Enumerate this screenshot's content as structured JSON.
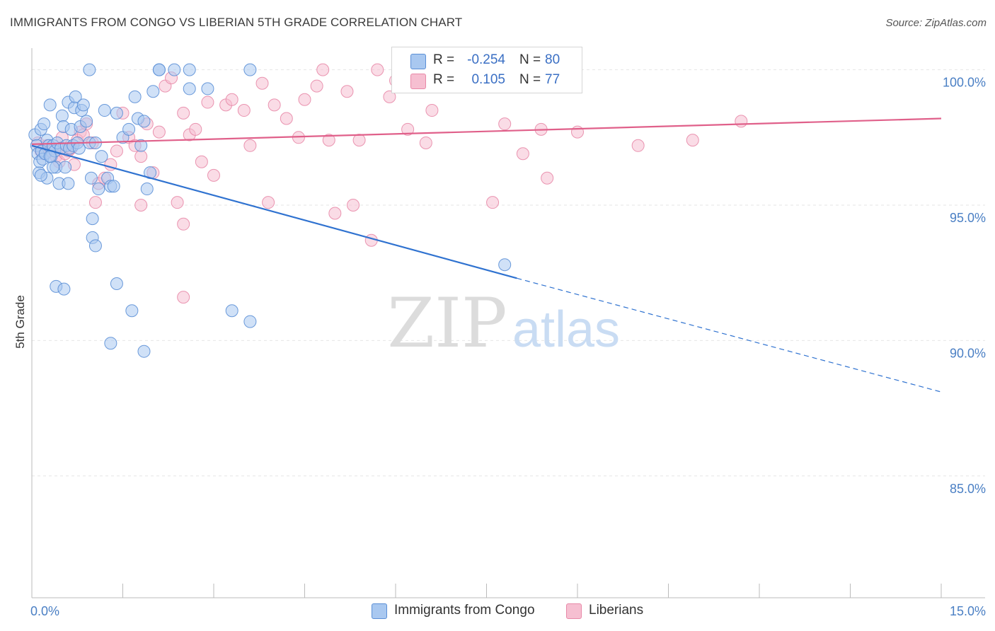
{
  "header": {
    "title": "IMMIGRANTS FROM CONGO VS LIBERIAN 5TH GRADE CORRELATION CHART",
    "source": "Source: ZipAtlas.com"
  },
  "watermark": {
    "zip": "ZIP",
    "atlas": "atlas"
  },
  "legend": {
    "rows": [
      {
        "r_label": "R =",
        "r_value": "-0.254",
        "n_label": "N =",
        "n_value": "80"
      },
      {
        "r_label": "R =",
        "r_value": "0.105",
        "n_label": "N =",
        "n_value": "77"
      }
    ],
    "bottom": [
      {
        "label": "Immigrants from Congo"
      },
      {
        "label": "Liberians"
      }
    ]
  },
  "colors": {
    "congo_fill": "#a9c8f0",
    "congo_stroke": "#5b8fd6",
    "congo_line": "#2f72d0",
    "liberian_fill": "#f6bfd1",
    "liberian_stroke": "#e889a8",
    "liberian_line": "#e0608a",
    "axis_tick_text": "#4a7fc4",
    "grid": "#e6e6e6"
  },
  "chart_data": {
    "type": "scatter",
    "title": "IMMIGRANTS FROM CONGO VS LIBERIAN 5TH GRADE CORRELATION CHART",
    "xlabel": "",
    "ylabel": "5th Grade",
    "xlim": [
      0,
      15
    ],
    "ylim": [
      80.5,
      100.8
    ],
    "x_tick_labels": [
      {
        "value": 0,
        "label": "0.0%"
      },
      {
        "value": 15,
        "label": "15.0%"
      }
    ],
    "y_tick_labels": [
      {
        "value": 100,
        "label": "100.0%"
      },
      {
        "value": 95,
        "label": "95.0%"
      },
      {
        "value": 90,
        "label": "90.0%"
      },
      {
        "value": 85,
        "label": "85.0%"
      }
    ],
    "x_minor_ticks": [
      0,
      1.5,
      3,
      4.5,
      6,
      7.5,
      9,
      10.5,
      12,
      13.5,
      15
    ],
    "grid": true,
    "legend_position": "top-center",
    "series": [
      {
        "name": "Immigrants from Congo",
        "color": "#a9c8f0",
        "trend": {
          "x0": 0,
          "y0": 97.2,
          "x1": 8.0,
          "y1": 92.3,
          "dash_to_x": 15,
          "dash_to_y": 88.1
        },
        "points": [
          [
            0.05,
            97.6
          ],
          [
            0.08,
            97.2
          ],
          [
            0.1,
            96.9
          ],
          [
            0.12,
            96.2
          ],
          [
            0.13,
            96.6
          ],
          [
            0.15,
            97.8
          ],
          [
            0.16,
            97.0
          ],
          [
            0.18,
            96.7
          ],
          [
            0.2,
            98.0
          ],
          [
            0.22,
            96.9
          ],
          [
            0.25,
            97.4
          ],
          [
            0.28,
            97.2
          ],
          [
            0.3,
            98.7
          ],
          [
            0.32,
            96.8
          ],
          [
            0.35,
            97.2
          ],
          [
            0.38,
            97.0
          ],
          [
            0.4,
            96.4
          ],
          [
            0.42,
            97.3
          ],
          [
            0.45,
            95.8
          ],
          [
            0.48,
            97.1
          ],
          [
            0.5,
            98.3
          ],
          [
            0.52,
            97.9
          ],
          [
            0.55,
            96.4
          ],
          [
            0.57,
            97.2
          ],
          [
            0.6,
            98.8
          ],
          [
            0.62,
            97.1
          ],
          [
            0.65,
            97.8
          ],
          [
            0.68,
            97.2
          ],
          [
            0.7,
            98.6
          ],
          [
            0.72,
            99.0
          ],
          [
            0.75,
            97.3
          ],
          [
            0.78,
            97.1
          ],
          [
            0.8,
            97.9
          ],
          [
            0.82,
            98.5
          ],
          [
            0.85,
            98.7
          ],
          [
            0.9,
            98.1
          ],
          [
            0.95,
            97.3
          ],
          [
            0.98,
            96.0
          ],
          [
            1.0,
            94.5
          ],
          [
            1.05,
            97.3
          ],
          [
            1.1,
            95.6
          ],
          [
            1.15,
            96.8
          ],
          [
            1.2,
            98.5
          ],
          [
            1.25,
            96.0
          ],
          [
            1.3,
            95.7
          ],
          [
            1.35,
            95.7
          ],
          [
            1.4,
            98.4
          ],
          [
            1.5,
            97.5
          ],
          [
            1.6,
            97.8
          ],
          [
            1.7,
            99.0
          ],
          [
            1.75,
            98.2
          ],
          [
            1.8,
            97.2
          ],
          [
            1.85,
            98.1
          ],
          [
            1.9,
            95.6
          ],
          [
            1.95,
            96.2
          ],
          [
            2.0,
            99.2
          ],
          [
            2.1,
            100.0
          ],
          [
            2.1,
            100.0
          ],
          [
            2.35,
            100.0
          ],
          [
            2.6,
            100.0
          ],
          [
            0.95,
            100.0
          ],
          [
            2.6,
            99.3
          ],
          [
            1.0,
            93.8
          ],
          [
            1.05,
            93.5
          ],
          [
            0.4,
            92.0
          ],
          [
            0.53,
            91.9
          ],
          [
            1.3,
            89.9
          ],
          [
            1.4,
            92.1
          ],
          [
            1.65,
            91.1
          ],
          [
            1.85,
            89.6
          ],
          [
            3.3,
            91.1
          ],
          [
            3.6,
            90.7
          ],
          [
            2.9,
            99.3
          ],
          [
            3.6,
            100.0
          ],
          [
            7.8,
            92.8
          ],
          [
            0.25,
            96.0
          ],
          [
            0.35,
            96.4
          ],
          [
            0.6,
            95.8
          ],
          [
            0.15,
            96.1
          ],
          [
            0.3,
            96.8
          ]
        ]
      },
      {
        "name": "Liberians",
        "color": "#f6bfd1",
        "trend": {
          "x0": 0,
          "y0": 97.25,
          "x1": 15,
          "y1": 98.2
        },
        "points": [
          [
            0.1,
            97.3
          ],
          [
            0.2,
            96.9
          ],
          [
            0.25,
            97.2
          ],
          [
            0.3,
            97.0
          ],
          [
            0.4,
            96.8
          ],
          [
            0.5,
            97.5
          ],
          [
            0.6,
            97.0
          ],
          [
            0.7,
            96.5
          ],
          [
            0.8,
            97.7
          ],
          [
            0.9,
            98.0
          ],
          [
            1.0,
            97.3
          ],
          [
            1.1,
            95.8
          ],
          [
            1.2,
            96.0
          ],
          [
            1.3,
            96.5
          ],
          [
            1.4,
            97.0
          ],
          [
            1.5,
            98.4
          ],
          [
            1.6,
            97.5
          ],
          [
            1.7,
            97.2
          ],
          [
            1.8,
            96.8
          ],
          [
            1.9,
            98.0
          ],
          [
            2.0,
            96.2
          ],
          [
            2.1,
            97.7
          ],
          [
            2.2,
            99.4
          ],
          [
            2.3,
            99.7
          ],
          [
            2.5,
            98.4
          ],
          [
            2.6,
            97.6
          ],
          [
            2.7,
            97.8
          ],
          [
            2.8,
            96.6
          ],
          [
            2.9,
            98.8
          ],
          [
            3.0,
            96.1
          ],
          [
            3.2,
            98.7
          ],
          [
            3.3,
            98.9
          ],
          [
            3.5,
            98.5
          ],
          [
            3.6,
            97.2
          ],
          [
            3.8,
            99.5
          ],
          [
            3.9,
            95.1
          ],
          [
            4.0,
            98.7
          ],
          [
            4.2,
            98.2
          ],
          [
            4.4,
            97.5
          ],
          [
            4.5,
            98.9
          ],
          [
            4.7,
            99.4
          ],
          [
            4.8,
            100.0
          ],
          [
            4.9,
            97.4
          ],
          [
            5.0,
            94.7
          ],
          [
            5.2,
            99.2
          ],
          [
            5.3,
            95.0
          ],
          [
            5.4,
            97.4
          ],
          [
            5.6,
            93.7
          ],
          [
            5.7,
            100.0
          ],
          [
            5.9,
            99.0
          ],
          [
            6.0,
            99.6
          ],
          [
            6.2,
            97.8
          ],
          [
            6.5,
            97.3
          ],
          [
            6.6,
            98.5
          ],
          [
            7.0,
            99.4
          ],
          [
            7.6,
            95.1
          ],
          [
            7.8,
            98.0
          ],
          [
            8.1,
            96.9
          ],
          [
            8.4,
            97.8
          ],
          [
            8.5,
            96.0
          ],
          [
            9.0,
            97.7
          ],
          [
            10.0,
            97.2
          ],
          [
            10.9,
            97.4
          ],
          [
            11.7,
            98.1
          ],
          [
            1.05,
            95.1
          ],
          [
            1.8,
            95.0
          ],
          [
            2.4,
            95.1
          ],
          [
            2.5,
            94.3
          ],
          [
            2.5,
            91.6
          ],
          [
            0.15,
            97.0
          ],
          [
            0.35,
            97.1
          ],
          [
            0.45,
            96.6
          ],
          [
            0.55,
            96.9
          ],
          [
            0.65,
            97.1
          ],
          [
            0.75,
            97.4
          ],
          [
            0.85,
            97.6
          ],
          [
            6.05,
            99.5
          ]
        ]
      }
    ]
  }
}
